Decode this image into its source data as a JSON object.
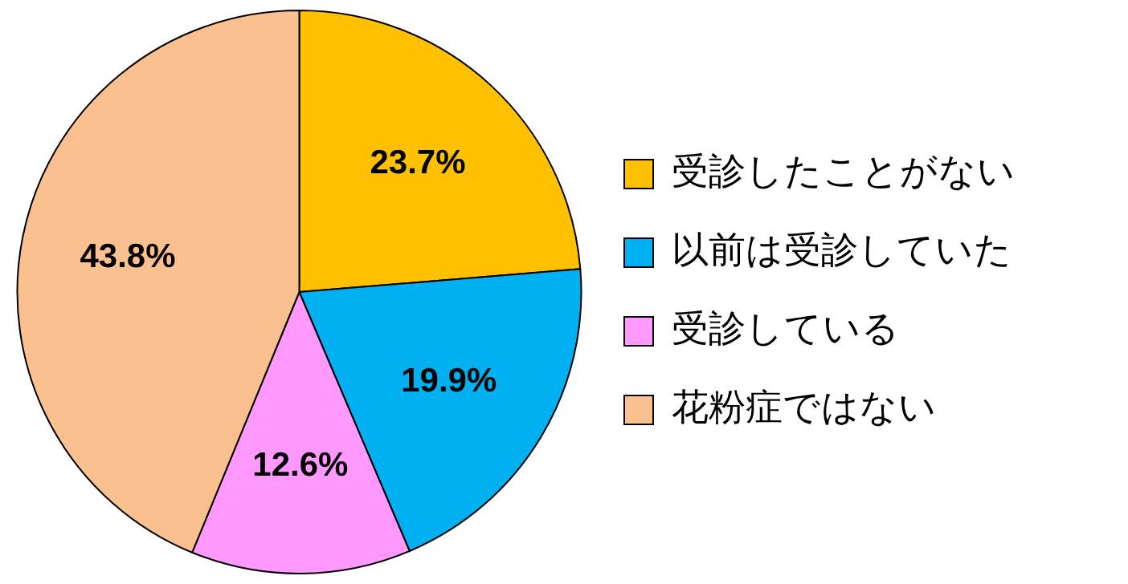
{
  "chart_data": {
    "type": "pie",
    "categories": [
      "受診したことがない",
      "以前は受診していた",
      "受診している",
      "花粉症ではない"
    ],
    "values": [
      23.7,
      19.9,
      12.6,
      43.8
    ],
    "colors": [
      "#ffc000",
      "#00b0f0",
      "#ff99ff",
      "#fac090"
    ],
    "value_labels": [
      "23.7%",
      "19.9%",
      "12.6%",
      "43.8%"
    ],
    "legend": "right"
  }
}
